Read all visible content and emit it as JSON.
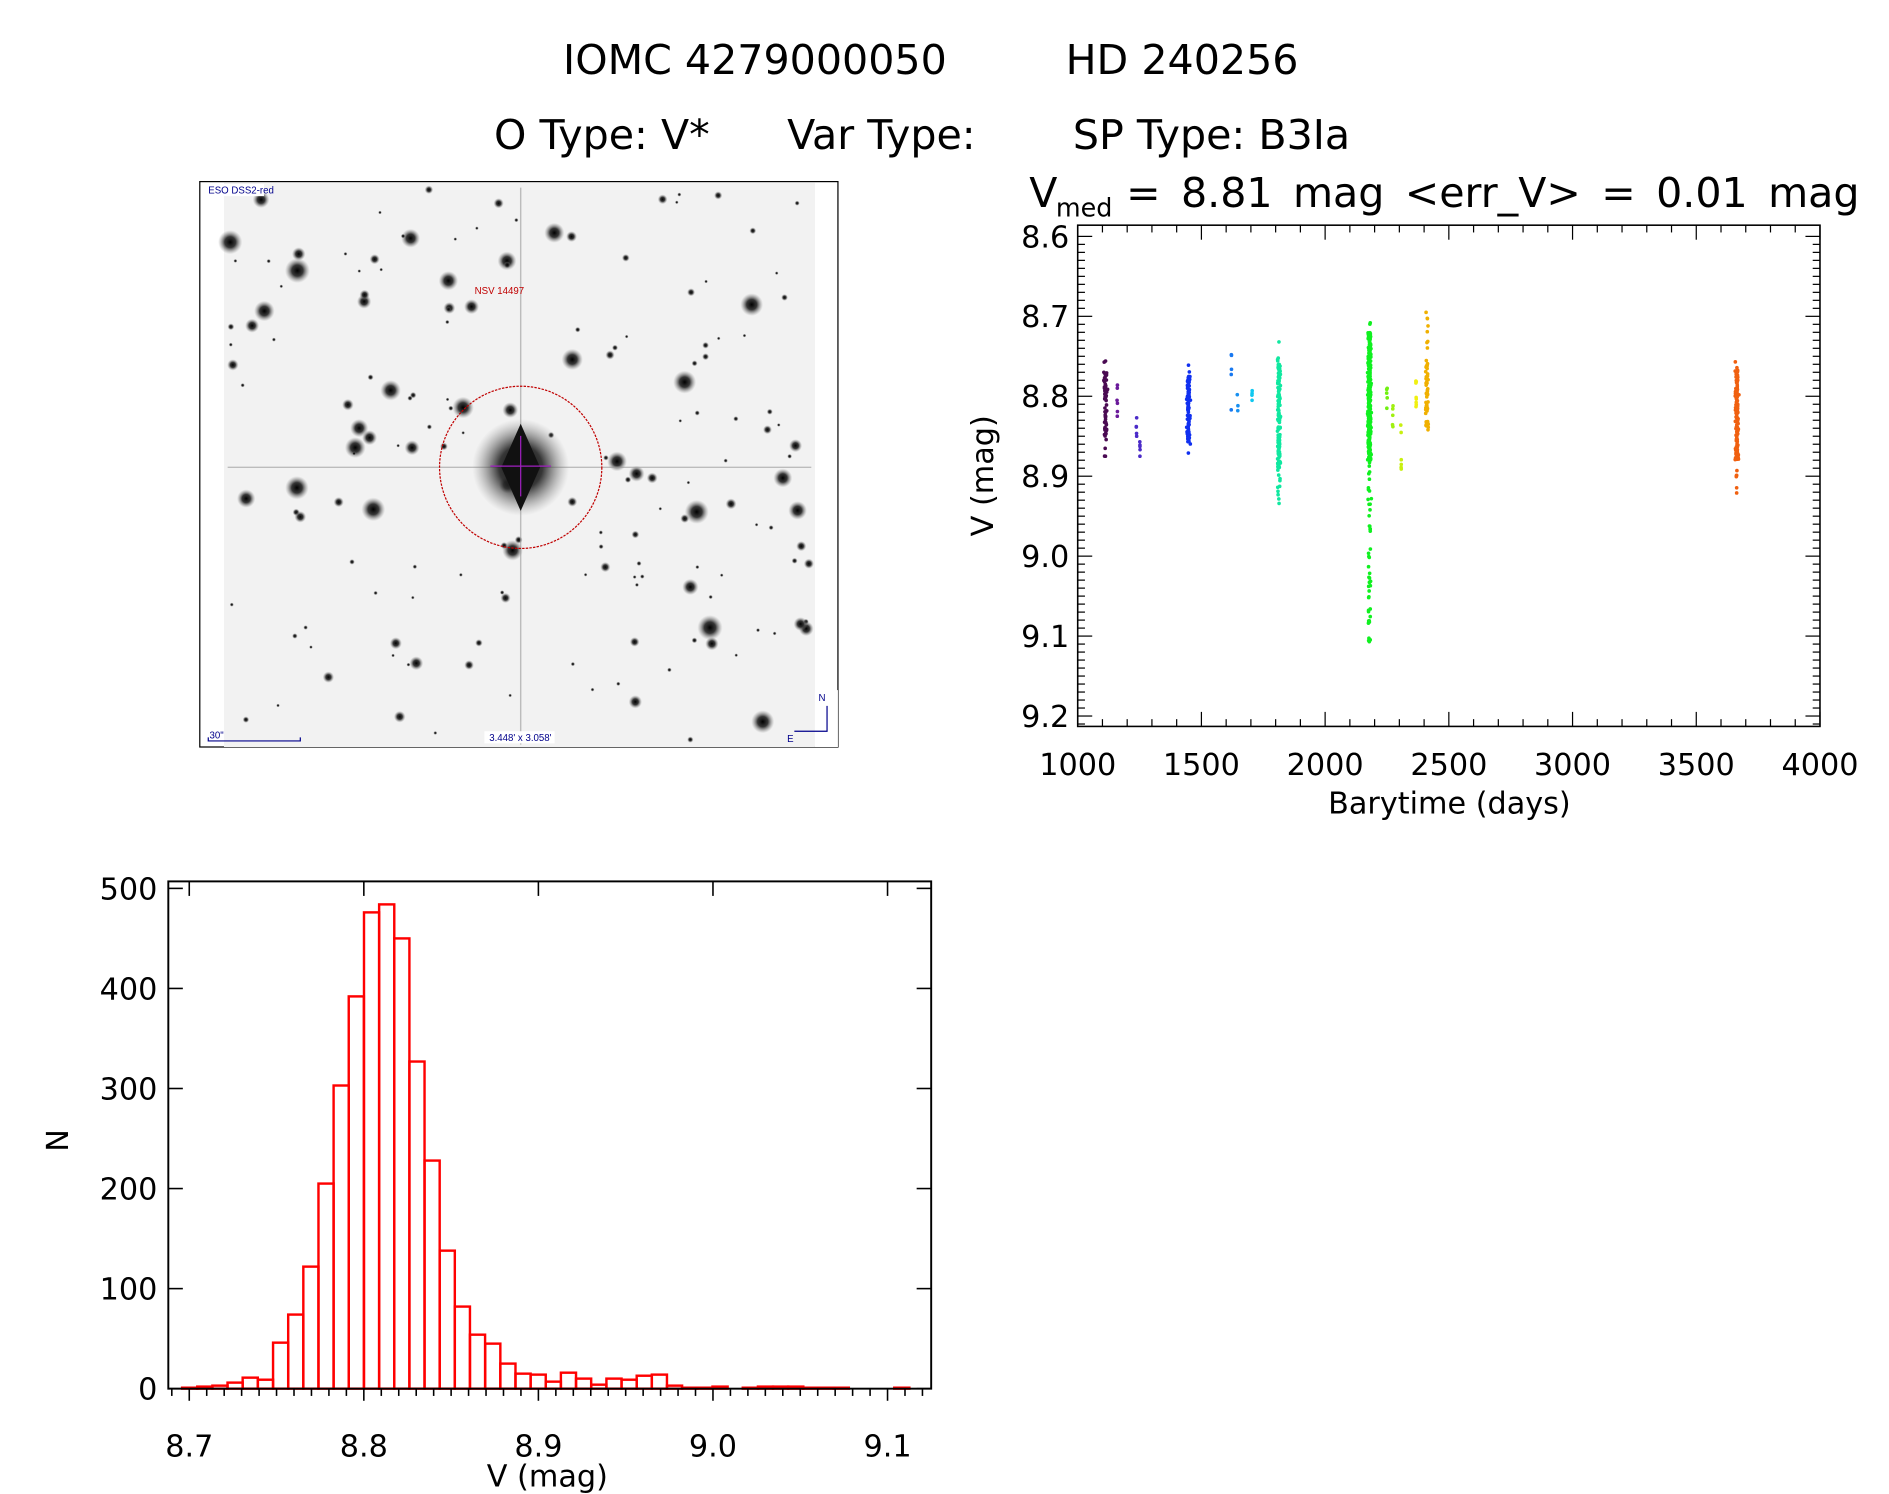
{
  "header": {
    "line1_id": "IOMC 4279000050",
    "line1_name": "HD 240256",
    "otype": "O Type: V*",
    "vartype": "Var Type:",
    "sptype": "SP Type: B3Ia",
    "vmed_prefix": "V",
    "vmed_sub": "med",
    "vmed_rest": "= 8.81 mag <err_V> = 0.01 mag"
  },
  "image_panel": {
    "survey_label": "ESO DSS2-red",
    "target_label": "NSV 14497",
    "scale_label": "30\"",
    "fov_label": "3.448' x 3.058'",
    "north_label": "N",
    "east_label": "E"
  },
  "chart_data": [
    {
      "type": "scatter",
      "title": "V_med = 8.81 mag <err_V> = 0.01 mag",
      "xlabel": "Barytime (days)",
      "ylabel": "V (mag)",
      "xlim": [
        1000,
        4000
      ],
      "ylim": [
        9.213,
        8.586
      ],
      "y_reversed": true,
      "xticks": [
        "1000",
        "1500",
        "2000",
        "2500",
        "3000",
        "3500",
        "4000"
      ],
      "yticks": [
        "8.6",
        "8.7",
        "8.8",
        "8.9",
        "9.0",
        "9.1",
        "9.2"
      ],
      "grid": false,
      "color_by_time": true,
      "groups": [
        {
          "x": 1112,
          "y_min": 8.756,
          "y_max": 8.875,
          "core": [
            8.77,
            8.855
          ],
          "n": 70,
          "color": "#4a0a52"
        },
        {
          "x": 1160,
          "y_min": 8.786,
          "y_max": 8.825,
          "core": [
            8.79,
            8.82
          ],
          "n": 6,
          "color": "#6a1a9a"
        },
        {
          "x": 1238,
          "y_min": 8.827,
          "y_max": 8.85,
          "core": [
            8.83,
            8.848
          ],
          "n": 5,
          "color": "#4b2bc8"
        },
        {
          "x": 1251,
          "y_min": 8.857,
          "y_max": 8.875,
          "core": [
            8.86,
            8.873
          ],
          "n": 5,
          "color": "#4b2bc8"
        },
        {
          "x": 1448,
          "y_min": 8.761,
          "y_max": 8.871,
          "core": [
            8.775,
            8.86
          ],
          "n": 90,
          "color": "#1030f0"
        },
        {
          "x": 1621,
          "y_min": 8.748,
          "y_max": 8.817,
          "core": [
            8.748,
            8.817
          ],
          "n": 5,
          "color": "#1878f0"
        },
        {
          "x": 1647,
          "y_min": 8.798,
          "y_max": 8.818,
          "core": [
            8.798,
            8.818
          ],
          "n": 3,
          "color": "#1890f0"
        },
        {
          "x": 1704,
          "y_min": 8.793,
          "y_max": 8.805,
          "core": [
            8.793,
            8.805
          ],
          "n": 4,
          "color": "#10c8f0"
        },
        {
          "x": 1813,
          "y_min": 8.732,
          "y_max": 8.934,
          "core": [
            8.76,
            8.89
          ],
          "n": 160,
          "color": "#10e8a0"
        },
        {
          "x": 2179,
          "y_min": 8.708,
          "y_max": 9.107,
          "core": [
            8.72,
            8.88
          ],
          "n": 420,
          "color": "#10f020"
        },
        {
          "x": 2250,
          "y_min": 8.79,
          "y_max": 8.815,
          "core": [
            8.79,
            8.815
          ],
          "n": 5,
          "color": "#70f010"
        },
        {
          "x": 2273,
          "y_min": 8.812,
          "y_max": 8.838,
          "core": [
            8.812,
            8.838
          ],
          "n": 5,
          "color": "#a0f010"
        },
        {
          "x": 2307,
          "y_min": 8.836,
          "y_max": 8.891,
          "core": [
            8.836,
            8.891
          ],
          "n": 6,
          "color": "#c8f010"
        },
        {
          "x": 2368,
          "y_min": 8.781,
          "y_max": 8.813,
          "core": [
            8.781,
            8.813
          ],
          "n": 8,
          "color": "#f0f010"
        },
        {
          "x": 2412,
          "y_min": 8.695,
          "y_max": 8.842,
          "core": [
            8.755,
            8.84
          ],
          "n": 60,
          "color": "#f0b000"
        },
        {
          "x": 3664,
          "y_min": 8.757,
          "y_max": 8.921,
          "core": [
            8.765,
            8.88
          ],
          "n": 150,
          "color": "#f06010"
        }
      ]
    },
    {
      "type": "bar",
      "subtype": "histogram",
      "xlabel": "V (mag)",
      "ylabel": "N",
      "xlim": [
        8.688,
        9.125
      ],
      "ylim": [
        0,
        507
      ],
      "xticks": [
        "8.7",
        "8.8",
        "8.9",
        "9.0",
        "9.1"
      ],
      "yticks": [
        "0",
        "100",
        "200",
        "300",
        "400",
        "500"
      ],
      "bin_start": 8.6959,
      "bin_width": 0.00868,
      "counts": [
        1,
        2,
        3,
        6,
        11,
        9,
        46,
        74,
        122,
        205,
        303,
        392,
        476,
        484,
        450,
        327,
        228,
        138,
        82,
        54,
        45,
        25,
        15,
        14,
        7,
        16,
        10,
        4,
        10,
        9,
        13,
        14,
        3,
        1,
        1,
        2,
        0,
        1,
        2,
        2,
        2,
        1,
        1,
        1,
        0,
        0,
        0,
        1
      ],
      "color": "#ff0000",
      "grid": false
    }
  ]
}
